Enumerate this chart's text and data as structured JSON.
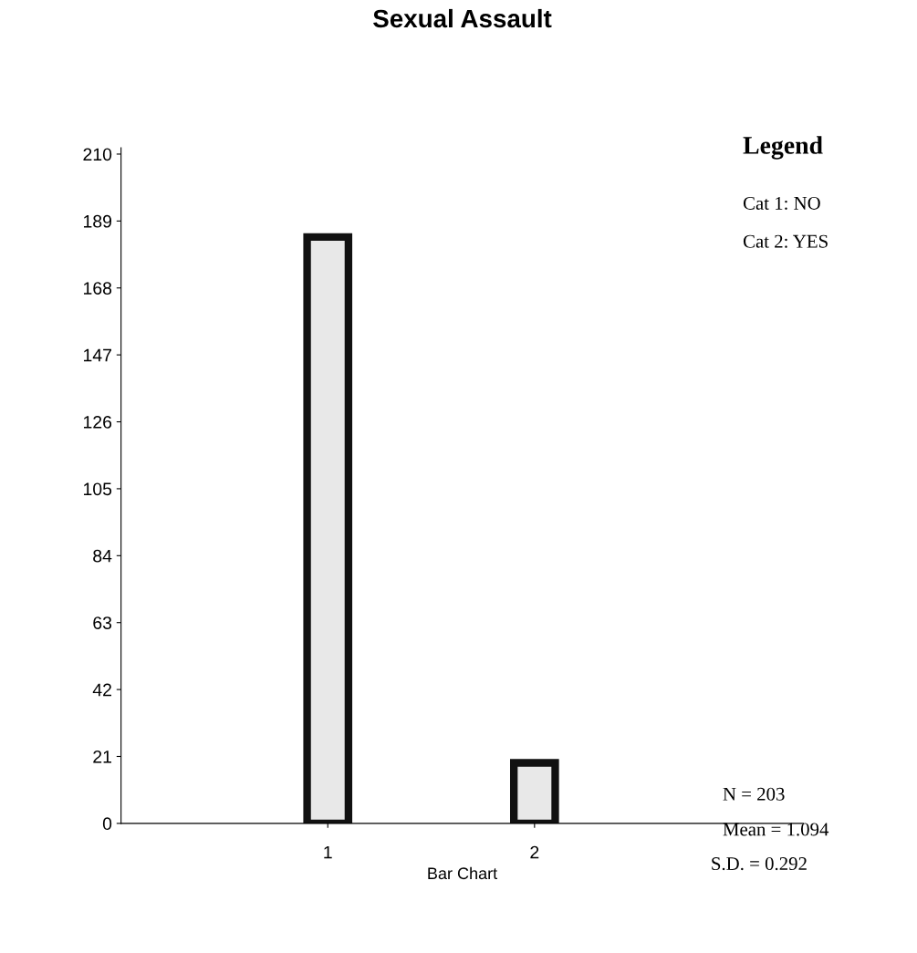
{
  "chart_data": {
    "type": "bar",
    "title": "Sexual Assault",
    "xlabel": "Bar Chart",
    "categories": [
      "1",
      "2"
    ],
    "values": [
      184,
      19
    ],
    "color": "#e8e8e8",
    "ylim": [
      0,
      212
    ],
    "yticks": [
      0,
      21,
      42,
      63,
      84,
      105,
      126,
      147,
      168,
      189,
      210
    ],
    "grid": false,
    "legend": false,
    "annotations": [
      "Legend",
      "Cat 1: NO",
      "Cat 2: YES",
      "N = 203",
      "Mean = 1.094",
      "S.D. = 0.292"
    ]
  }
}
